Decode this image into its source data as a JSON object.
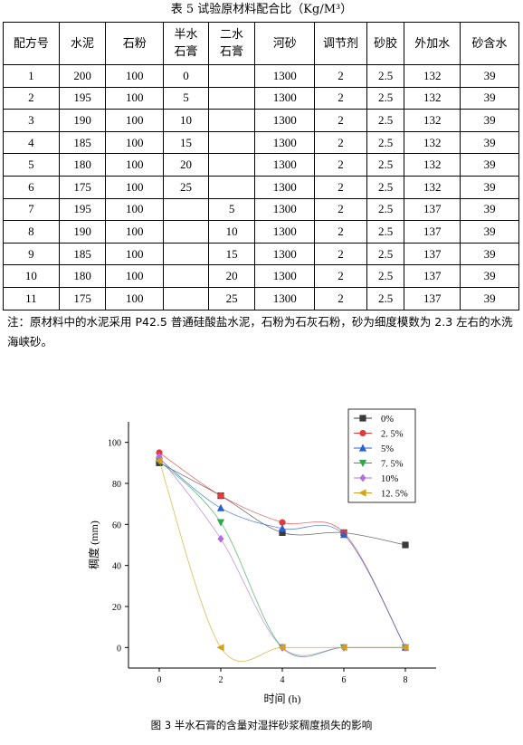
{
  "table": {
    "title": "表 5  试验原材料配合比（Kg/M³）",
    "headers": [
      [
        "配方号"
      ],
      [
        "水泥"
      ],
      [
        "石粉"
      ],
      [
        "半水",
        "石膏"
      ],
      [
        "二水",
        "石膏"
      ],
      [
        "河砂"
      ],
      [
        "调节剂"
      ],
      [
        "砂胶"
      ],
      [
        "外加水"
      ],
      [
        "砂含水"
      ]
    ],
    "rows": [
      [
        "1",
        "200",
        "100",
        "0",
        "",
        "1300",
        "2",
        "2.5",
        "132",
        "39"
      ],
      [
        "2",
        "195",
        "100",
        "5",
        "",
        "1300",
        "2",
        "2.5",
        "132",
        "39"
      ],
      [
        "3",
        "190",
        "100",
        "10",
        "",
        "1300",
        "2",
        "2.5",
        "132",
        "39"
      ],
      [
        "4",
        "185",
        "100",
        "15",
        "",
        "1300",
        "2",
        "2.5",
        "132",
        "39"
      ],
      [
        "5",
        "180",
        "100",
        "20",
        "",
        "1300",
        "2",
        "2.5",
        "132",
        "39"
      ],
      [
        "6",
        "175",
        "100",
        "25",
        "",
        "1300",
        "2",
        "2.5",
        "132",
        "39"
      ],
      [
        "7",
        "195",
        "100",
        "",
        "5",
        "1300",
        "2",
        "2.5",
        "137",
        "39"
      ],
      [
        "8",
        "190",
        "100",
        "",
        "10",
        "1300",
        "2",
        "2.5",
        "137",
        "39"
      ],
      [
        "9",
        "185",
        "100",
        "",
        "15",
        "1300",
        "2",
        "2.5",
        "137",
        "39"
      ],
      [
        "10",
        "180",
        "100",
        "",
        "20",
        "1300",
        "2",
        "2.5",
        "137",
        "39"
      ],
      [
        "11",
        "175",
        "100",
        "",
        "25",
        "1300",
        "2",
        "2.5",
        "137",
        "39"
      ]
    ],
    "note": "注：原材料中的水泥采用 P42.5 普通硅酸盐水泥，石粉为石灰石粉，砂为细度模数为 2.3 左右的水洗海峡砂。"
  },
  "figure_caption": "图 3  半水石膏的含量对湿拌砂浆稠度损失的影响",
  "chart_data": {
    "type": "line",
    "xlabel": "时间 (h)",
    "ylabel": "稠度 (mm)",
    "xlim": [
      -1.0,
      9.0
    ],
    "ylim": [
      -10,
      110
    ],
    "xticks": [
      0,
      2,
      4,
      6,
      8
    ],
    "yticks": [
      0,
      20,
      40,
      60,
      80,
      100
    ],
    "legend_position": "top-right",
    "x": [
      0,
      2,
      4,
      6,
      8
    ],
    "series": [
      {
        "name": "0%",
        "values": [
          90,
          74,
          56,
          56,
          50
        ],
        "color": "#3a3a3a",
        "marker": "square"
      },
      {
        "name": "2. 5%",
        "values": [
          95,
          74,
          61,
          56,
          0
        ],
        "color": "#e23b3b",
        "marker": "circle"
      },
      {
        "name": "5%",
        "values": [
          92,
          68,
          58,
          55,
          0
        ],
        "color": "#2a5fd6",
        "marker": "triangle-up"
      },
      {
        "name": "7. 5%",
        "values": [
          91,
          61,
          0,
          0,
          0
        ],
        "color": "#2ea84a",
        "marker": "triangle-down"
      },
      {
        "name": "10%",
        "values": [
          93,
          53,
          0,
          0,
          0
        ],
        "color": "#b070e0",
        "marker": "diamond"
      },
      {
        "name": "12. 5%",
        "values": [
          91,
          0,
          0,
          0,
          0
        ],
        "color": "#d4a11a",
        "marker": "triangle-left"
      }
    ]
  }
}
